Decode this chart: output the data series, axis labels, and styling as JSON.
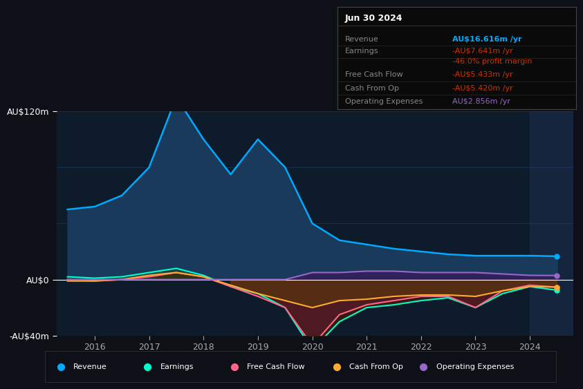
{
  "bg_color": "#0d1117",
  "plot_bg_color": "#0d1b2a",
  "grid_color": "#1e3a5f",
  "title_text": "Jun 30 2024",
  "info_box_rows": [
    {
      "label": "Revenue",
      "value": "AU$16.616m /yr",
      "value_color": "#00aaff"
    },
    {
      "label": "Earnings",
      "value": "-AU$7.641m /yr",
      "value_color": "#cc3300"
    },
    {
      "label": "",
      "value": "-46.0% profit margin",
      "value_color": "#cc3300"
    },
    {
      "label": "Free Cash Flow",
      "value": "-AU$5.433m /yr",
      "value_color": "#cc3300"
    },
    {
      "label": "Cash From Op",
      "value": "-AU$5.420m /yr",
      "value_color": "#cc3300"
    },
    {
      "label": "Operating Expenses",
      "value": "AU$2.856m /yr",
      "value_color": "#9966cc"
    }
  ],
  "ylim": [
    -40,
    120
  ],
  "yticks": [
    -40,
    0,
    120
  ],
  "ytick_labels": [
    "-AU$40m",
    "AU$0",
    "AU$120m"
  ],
  "years": [
    2015.5,
    2016,
    2016.5,
    2017,
    2017.5,
    2018,
    2018.5,
    2019,
    2019.5,
    2020,
    2020.5,
    2021,
    2021.5,
    2022,
    2022.5,
    2023,
    2023.5,
    2024,
    2024.5
  ],
  "revenue": [
    50,
    52,
    60,
    80,
    130,
    100,
    75,
    100,
    80,
    40,
    28,
    25,
    22,
    20,
    18,
    17,
    17,
    17,
    16.6
  ],
  "earnings": [
    2,
    1,
    2,
    5,
    8,
    3,
    -5,
    -10,
    -20,
    -50,
    -30,
    -20,
    -18,
    -15,
    -13,
    -20,
    -10,
    -5,
    -7.6
  ],
  "fcf": [
    0,
    -1,
    0,
    2,
    5,
    2,
    -5,
    -12,
    -20,
    -47,
    -25,
    -18,
    -15,
    -12,
    -12,
    -20,
    -8,
    -4,
    -5.4
  ],
  "cashfromop": [
    -1,
    -1,
    0,
    3,
    5,
    2,
    -4,
    -10,
    -15,
    -20,
    -15,
    -14,
    -12,
    -11,
    -11,
    -12,
    -8,
    -5,
    -5.4
  ],
  "opex": [
    0,
    0,
    0,
    0,
    0,
    0,
    0,
    0,
    0,
    5,
    5,
    6,
    6,
    5,
    5,
    5,
    4,
    3,
    2.9
  ],
  "revenue_color": "#00aaff",
  "revenue_fill": "#1a3a5c",
  "earnings_color": "#00ffcc",
  "earnings_fill_pos": "#1a4a3a",
  "earnings_fill_neg": "#3a1a0a",
  "fcf_color": "#ff6688",
  "fcf_fill": "#5a1a2a",
  "cashfromop_color": "#ffaa33",
  "cashfromop_fill": "#5a3a0a",
  "opex_color": "#9966cc",
  "opex_fill": "#3a1a5c",
  "zero_line_color": "#ffffff",
  "legend_items": [
    {
      "label": "Revenue",
      "color": "#00aaff"
    },
    {
      "label": "Earnings",
      "color": "#00ffcc"
    },
    {
      "label": "Free Cash Flow",
      "color": "#ff6688"
    },
    {
      "label": "Cash From Op",
      "color": "#ffaa33"
    },
    {
      "label": "Operating Expenses",
      "color": "#9966cc"
    }
  ],
  "xticks": [
    2016,
    2017,
    2018,
    2019,
    2020,
    2021,
    2022,
    2023,
    2024
  ],
  "forecast_start": 2024.0
}
